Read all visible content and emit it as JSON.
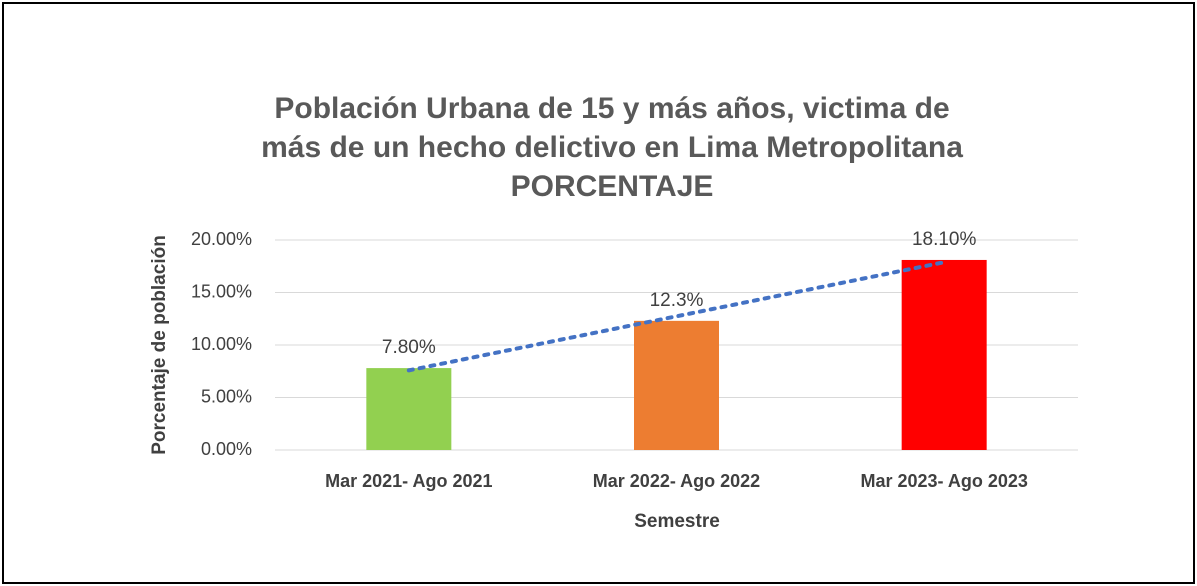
{
  "chart_data": {
    "type": "bar",
    "title": [
      "Población Urbana de 15 y más años, victima de",
      "más de un hecho delictivo en Lima Metropolitana",
      "PORCENTAJE"
    ],
    "categories": [
      "Mar 2021- Ago 2021",
      "Mar 2022- Ago 2022",
      "Mar 2023- Ago 2023"
    ],
    "values": [
      7.8,
      12.3,
      18.1
    ],
    "value_labels": [
      "7.80%",
      "12.3%",
      "18.10%"
    ],
    "colors": [
      "#92d050",
      "#ed7d31",
      "#ff0000"
    ],
    "trendline": {
      "type": "linear",
      "color": "#4472c4"
    },
    "xlabel": "Semestre",
    "ylabel": "Porcentaje de población",
    "ylim": [
      0,
      20
    ],
    "yticks": [
      {
        "value": 0,
        "label": "0.00%"
      },
      {
        "value": 5,
        "label": "5.00%"
      },
      {
        "value": 10,
        "label": "10.00%"
      },
      {
        "value": 15,
        "label": "15.00%"
      },
      {
        "value": 20,
        "label": "20.00%"
      }
    ],
    "grid": true
  }
}
